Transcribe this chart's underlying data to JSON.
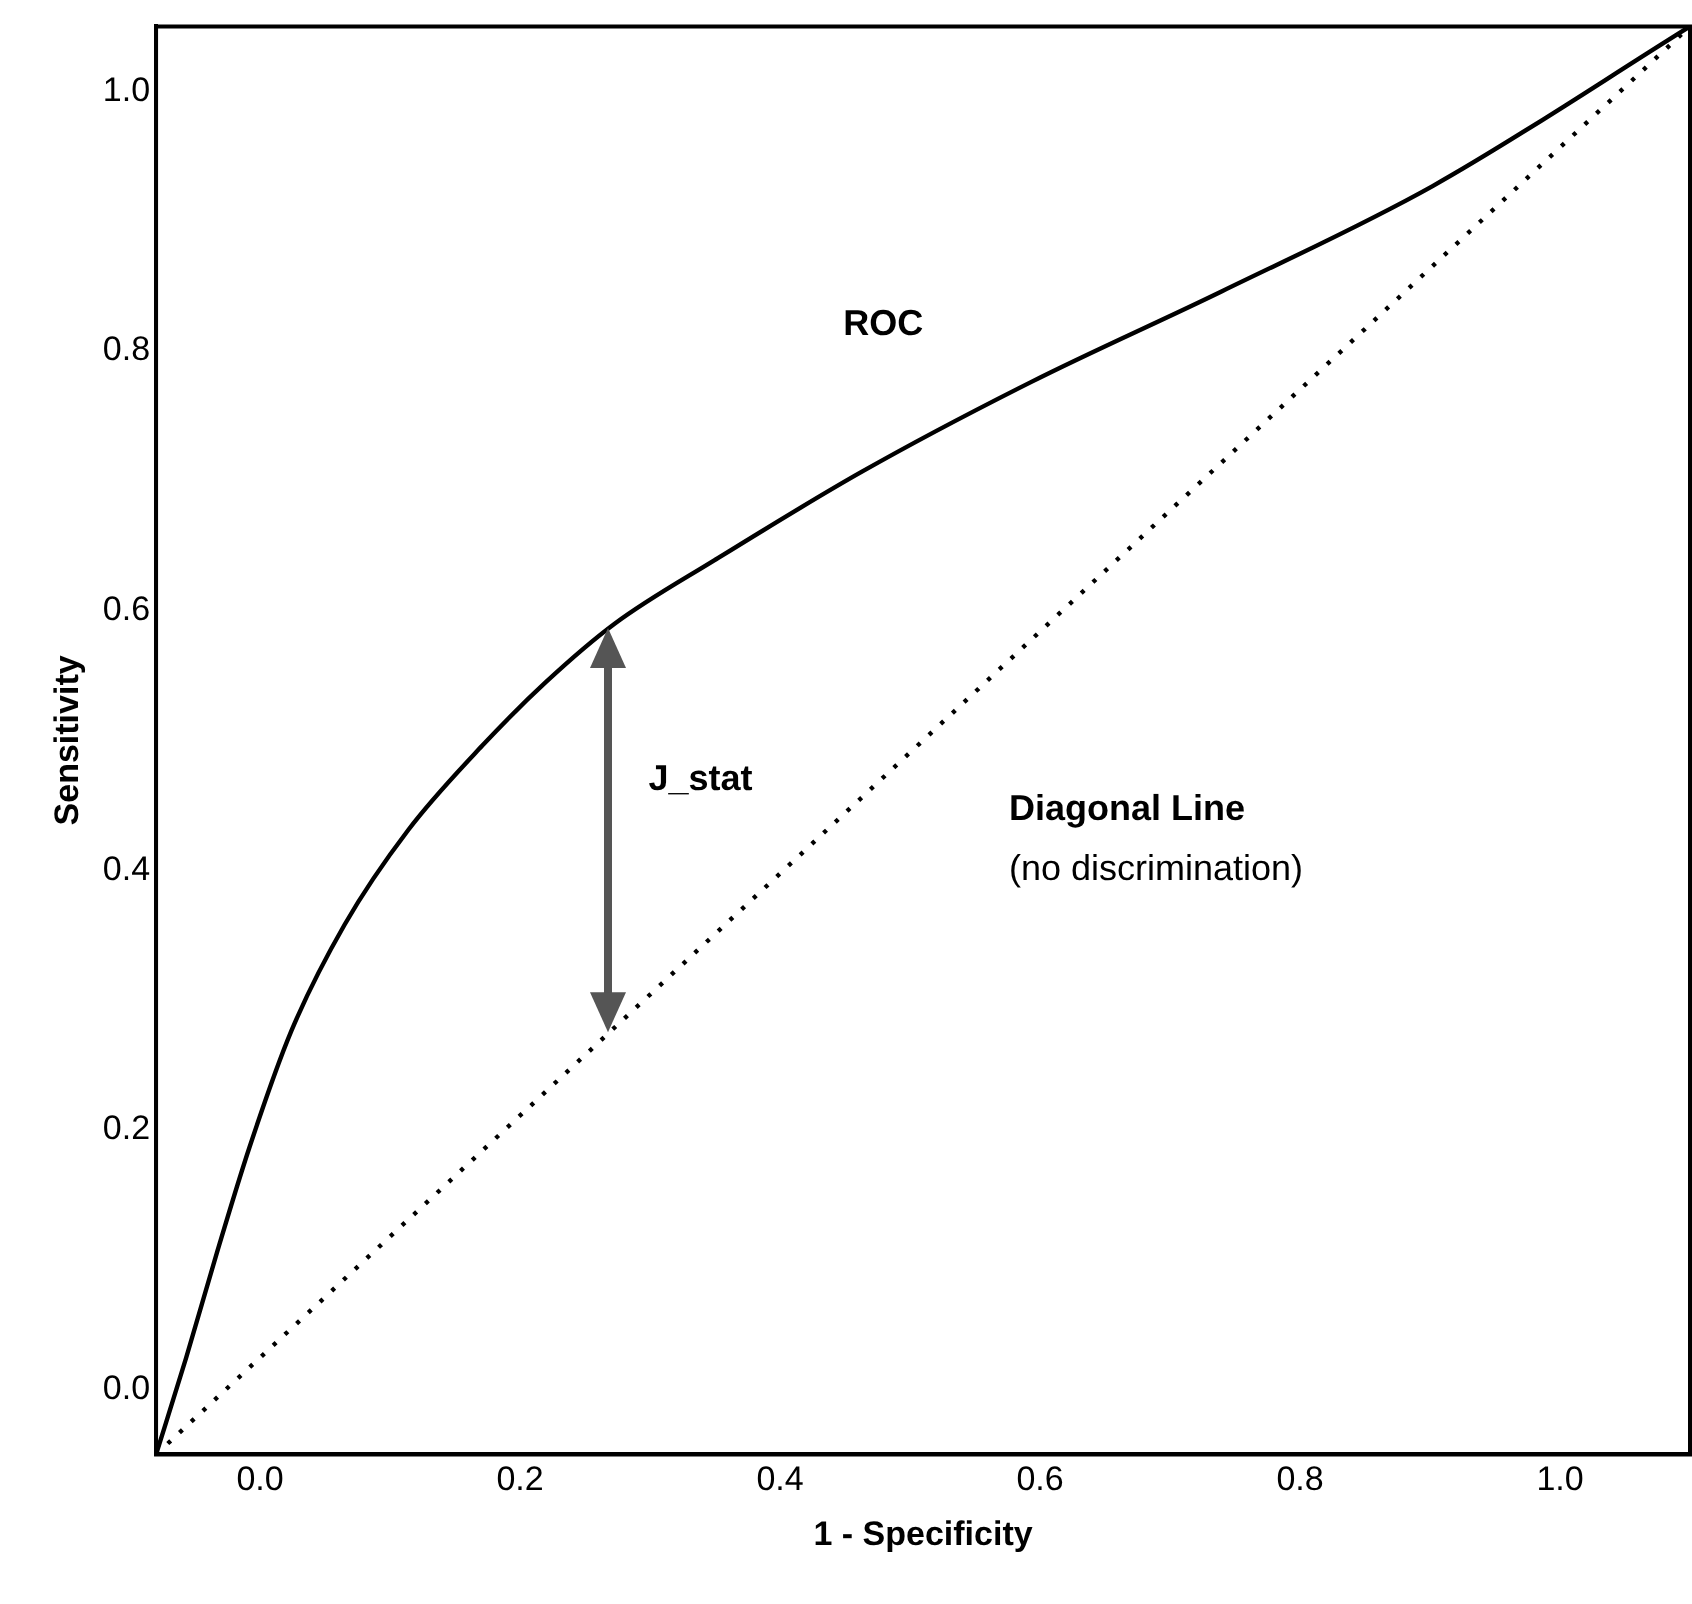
{
  "chart_data": {
    "type": "line",
    "xlabel": "1 - Specificity",
    "ylabel": "Sensitivity",
    "xlim": [
      -0.08,
      1.1
    ],
    "ylim": [
      -0.05,
      1.05
    ],
    "xticks": [
      {
        "value": 0,
        "label": "0.0"
      },
      {
        "value": 0.2,
        "label": "0.2"
      },
      {
        "value": 0.4,
        "label": "0.4"
      },
      {
        "value": 0.6,
        "label": "0.6"
      },
      {
        "value": 0.8,
        "label": "0.8"
      },
      {
        "value": 1,
        "label": "1.0"
      }
    ],
    "yticks": [
      {
        "value": 0,
        "label": "0.0"
      },
      0.2,
      0.4,
      0.6,
      0.8,
      {
        "value": 1,
        "label": "1.0"
      }
    ],
    "grid": false,
    "legend": false,
    "marker": "none",
    "series": [
      {
        "color": "#000000",
        "line_style": "solid",
        "x": [
          -0.08,
          -0.057,
          -0.033,
          -0.008,
          0.024,
          0.065,
          0.114,
          0.171,
          0.22,
          0.273,
          0.35,
          0.463,
          0.593,
          0.74,
          0.902,
          1.1
        ],
        "values": [
          -0.05,
          0.024,
          0.106,
          0.187,
          0.276,
          0.358,
          0.431,
          0.496,
          0.545,
          0.59,
          0.639,
          0.707,
          0.776,
          0.846,
          0.927,
          1.05
        ]
      },
      {
        "color": "#000000",
        "line_style": "dotted",
        "x": [
          -0.08,
          1.1
        ],
        "values": [
          -0.05,
          1.05
        ]
      }
    ],
    "annotations": [
      "ROC",
      "J_stat",
      "Diagonal Line",
      "(no discrimination)"
    ]
  }
}
